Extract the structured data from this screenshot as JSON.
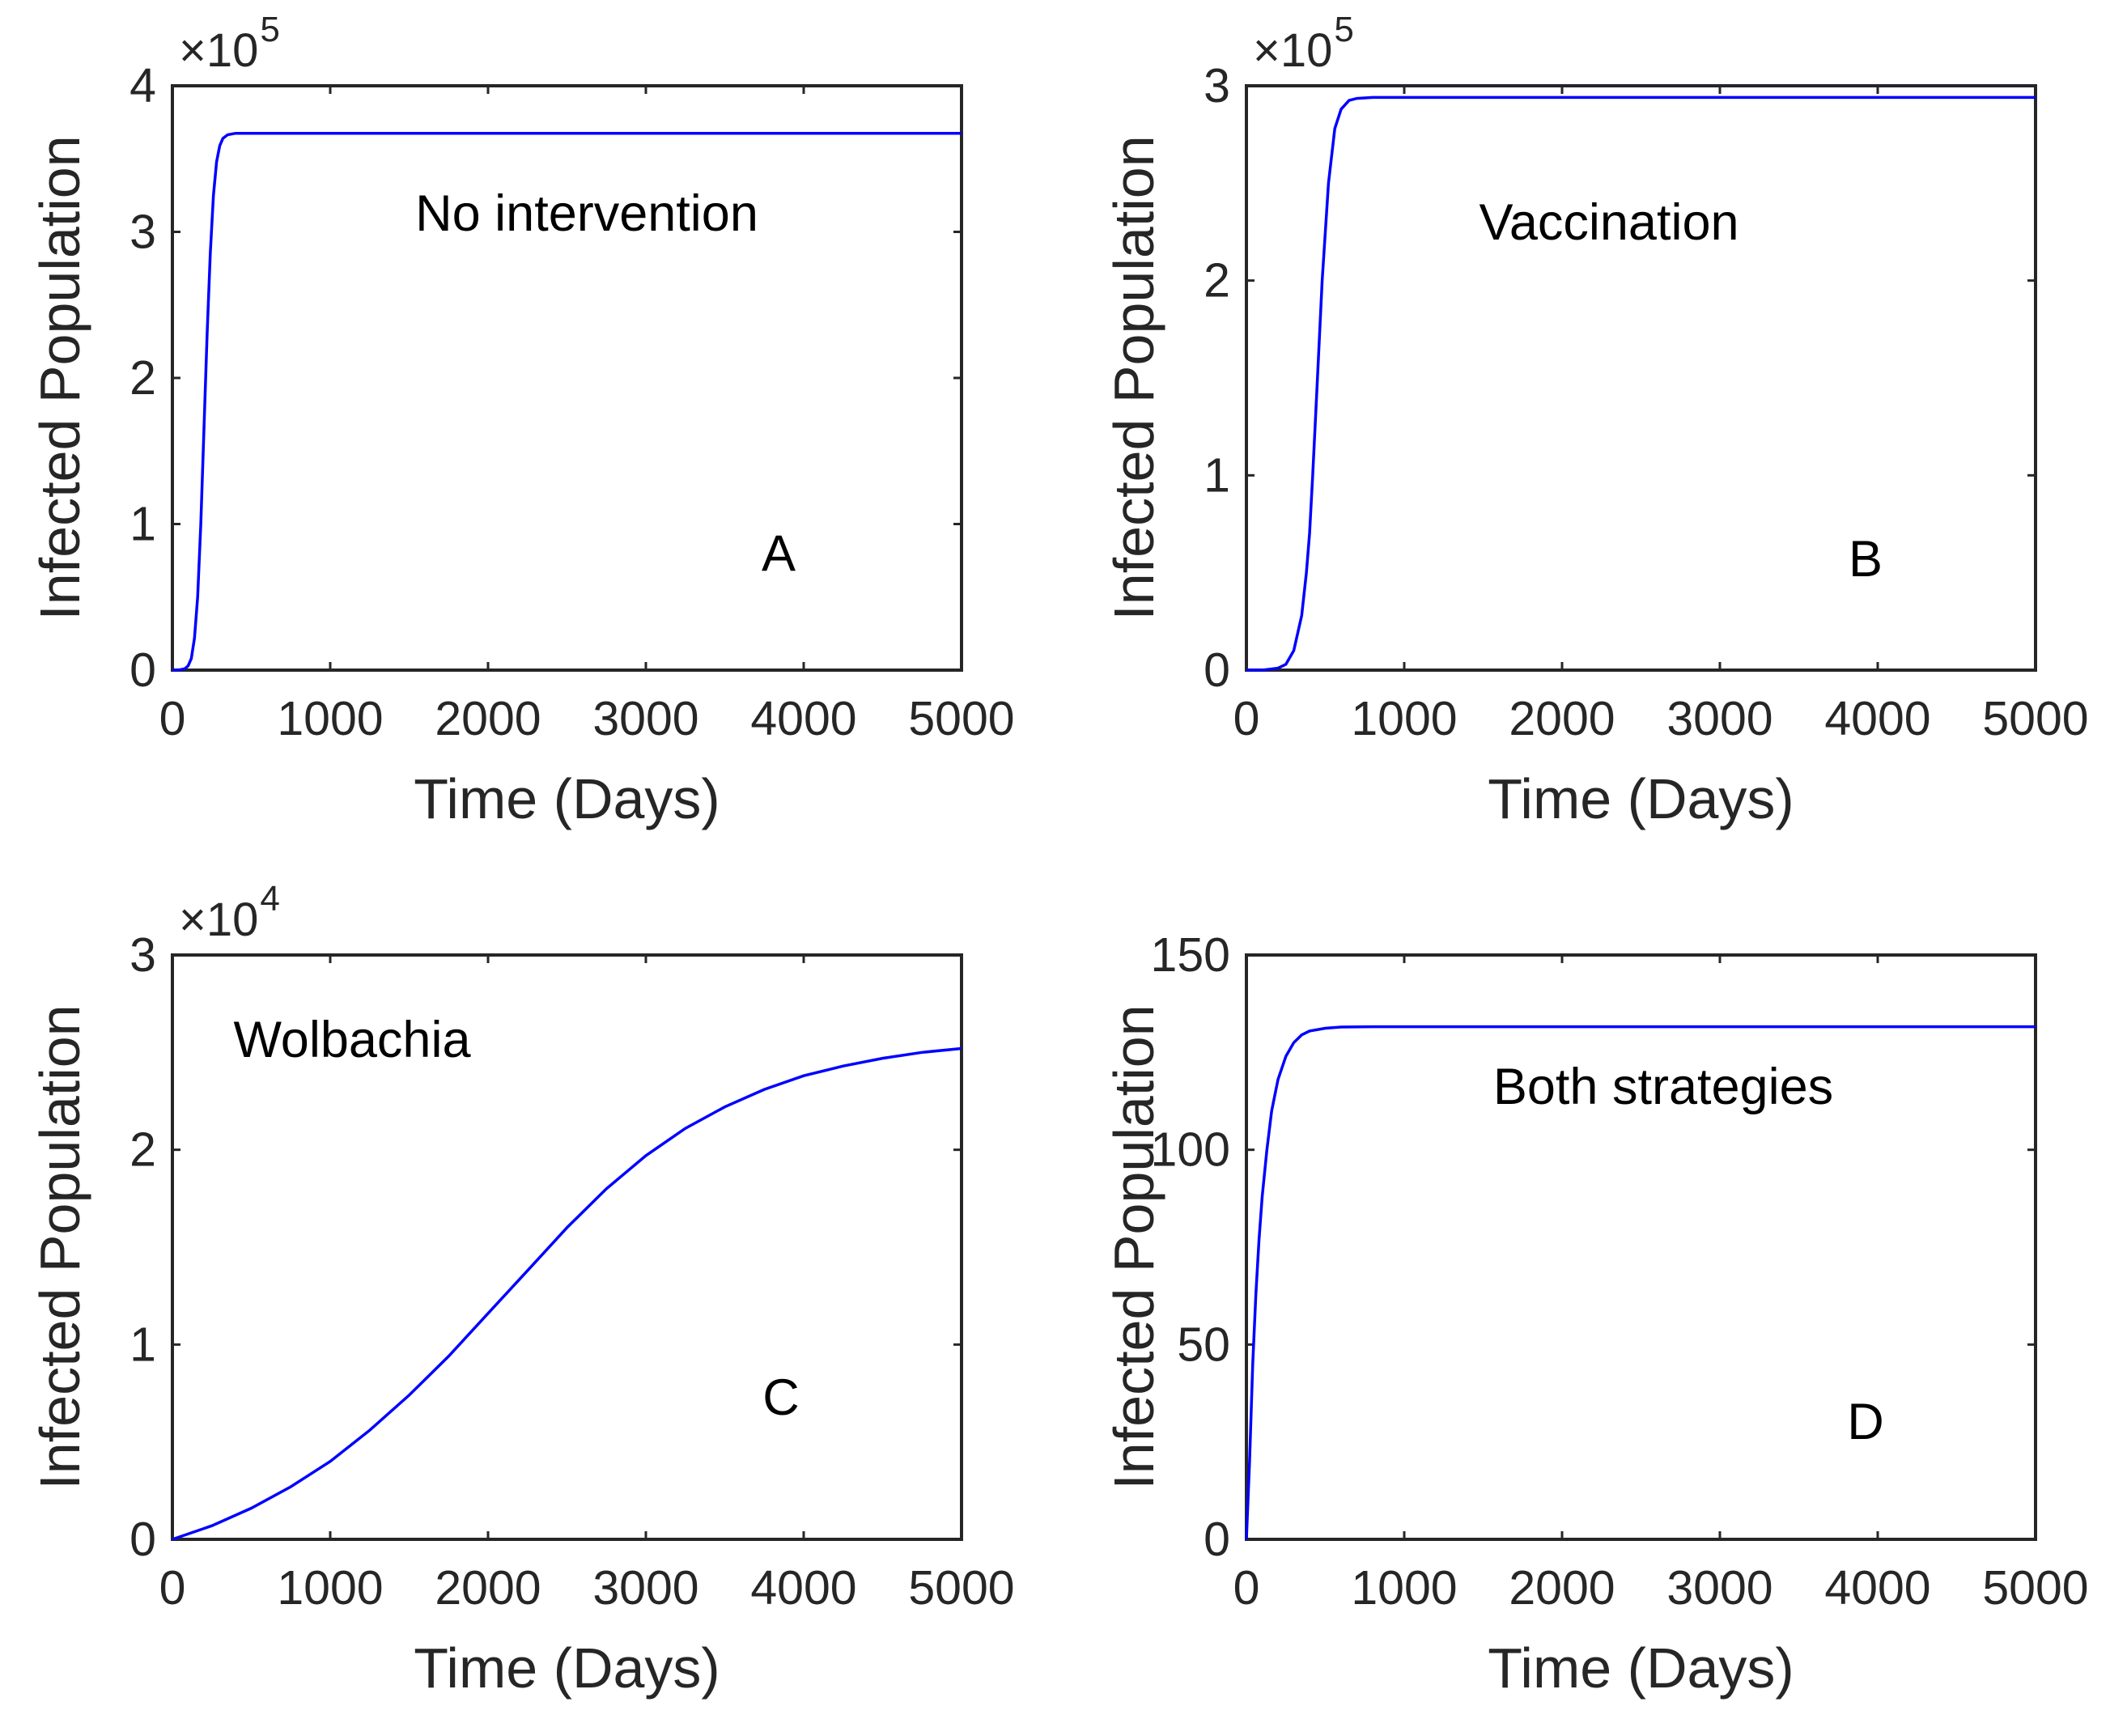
{
  "figure": {
    "background": "#ffffff",
    "line_color": "#0000ff",
    "axis_color": "#262626"
  },
  "chart_data": [
    {
      "type": "line",
      "panel": "A",
      "annotation": "No intervention",
      "panel_label": "A",
      "xlabel": "Time (Days)",
      "ylabel": "Infected Population",
      "xlim": [
        0,
        5000
      ],
      "ylim": [
        0,
        4
      ],
      "xticks": [
        0,
        1000,
        2000,
        3000,
        4000,
        5000
      ],
      "xtick_labels": [
        "0",
        "1000",
        "2000",
        "3000",
        "4000",
        "5000"
      ],
      "yticks": [
        0,
        1,
        2,
        3,
        4
      ],
      "ytick_labels": [
        "0",
        "1",
        "2",
        "3",
        "4"
      ],
      "y_multiplier": "×10",
      "y_multiplier_exp": "5",
      "grid": false,
      "series": [
        {
          "name": "Infected",
          "x": [
            0,
            50,
            80,
            100,
            120,
            140,
            160,
            180,
            200,
            220,
            240,
            260,
            280,
            300,
            320,
            350,
            400,
            500,
            700,
            1000,
            2000,
            3000,
            4000,
            5000
          ],
          "y": [
            0,
            0.003,
            0.01,
            0.03,
            0.08,
            0.22,
            0.5,
            1.0,
            1.65,
            2.3,
            2.85,
            3.25,
            3.48,
            3.59,
            3.64,
            3.665,
            3.675,
            3.675,
            3.675,
            3.675,
            3.675,
            3.675,
            3.675,
            3.675
          ]
        }
      ]
    },
    {
      "type": "line",
      "panel": "B",
      "annotation": "Vaccination",
      "panel_label": "B",
      "xlabel": "Time (Days)",
      "ylabel": "Infected Population",
      "xlim": [
        0,
        5000
      ],
      "ylim": [
        0,
        3
      ],
      "xticks": [
        0,
        1000,
        2000,
        3000,
        4000,
        5000
      ],
      "xtick_labels": [
        "0",
        "1000",
        "2000",
        "3000",
        "4000",
        "5000"
      ],
      "yticks": [
        0,
        1,
        2,
        3
      ],
      "ytick_labels": [
        "0",
        "1",
        "2",
        "3"
      ],
      "y_multiplier": "×10",
      "y_multiplier_exp": "5",
      "grid": false,
      "series": [
        {
          "name": "Infected",
          "x": [
            0,
            100,
            200,
            250,
            300,
            350,
            380,
            400,
            420,
            450,
            480,
            520,
            560,
            600,
            650,
            700,
            800,
            1000,
            2000,
            3000,
            4000,
            5000
          ],
          "y": [
            0,
            0.0,
            0.01,
            0.03,
            0.1,
            0.28,
            0.5,
            0.7,
            1.0,
            1.5,
            2.0,
            2.5,
            2.78,
            2.88,
            2.925,
            2.935,
            2.94,
            2.94,
            2.94,
            2.94,
            2.94,
            2.94
          ]
        }
      ]
    },
    {
      "type": "line",
      "panel": "C",
      "annotation": "Wolbachia",
      "panel_label": "C",
      "xlabel": "Time (Days)",
      "ylabel": "Infected Population",
      "xlim": [
        0,
        5000
      ],
      "ylim": [
        0,
        3
      ],
      "xticks": [
        0,
        1000,
        2000,
        3000,
        4000,
        5000
      ],
      "xtick_labels": [
        "0",
        "1000",
        "2000",
        "3000",
        "4000",
        "5000"
      ],
      "yticks": [
        0,
        1,
        2,
        3
      ],
      "ytick_labels": [
        "0",
        "1",
        "2",
        "3"
      ],
      "y_multiplier": "×10",
      "y_multiplier_exp": "4",
      "grid": false,
      "series": [
        {
          "name": "Infected",
          "x": [
            0,
            250,
            500,
            750,
            1000,
            1250,
            1500,
            1750,
            2000,
            2250,
            2500,
            2750,
            3000,
            3250,
            3500,
            3750,
            4000,
            4250,
            4500,
            4750,
            5000
          ],
          "y": [
            0,
            0.07,
            0.16,
            0.27,
            0.4,
            0.56,
            0.74,
            0.94,
            1.16,
            1.38,
            1.6,
            1.8,
            1.97,
            2.11,
            2.22,
            2.31,
            2.38,
            2.43,
            2.47,
            2.5,
            2.52
          ]
        }
      ]
    },
    {
      "type": "line",
      "panel": "D",
      "annotation": "Both strategies",
      "panel_label": "D",
      "xlabel": "Time (Days)",
      "ylabel": "Infected Population",
      "xlim": [
        0,
        5000
      ],
      "ylim": [
        0,
        150
      ],
      "xticks": [
        0,
        1000,
        2000,
        3000,
        4000,
        5000
      ],
      "xtick_labels": [
        "0",
        "1000",
        "2000",
        "3000",
        "4000",
        "5000"
      ],
      "yticks": [
        0,
        50,
        100,
        150
      ],
      "ytick_labels": [
        "0",
        "50",
        "100",
        "150"
      ],
      "y_multiplier": "",
      "y_multiplier_exp": "",
      "grid": false,
      "series": [
        {
          "name": "Infected",
          "x": [
            0,
            20,
            40,
            60,
            80,
            100,
            130,
            160,
            200,
            250,
            300,
            350,
            400,
            500,
            600,
            800,
            1000,
            2000,
            3000,
            4000,
            5000
          ],
          "y": [
            0,
            20,
            45,
            63,
            77,
            88,
            100,
            110,
            118,
            124,
            127.5,
            129.5,
            130.5,
            131.2,
            131.5,
            131.6,
            131.6,
            131.6,
            131.6,
            131.6,
            131.6
          ]
        }
      ]
    }
  ]
}
